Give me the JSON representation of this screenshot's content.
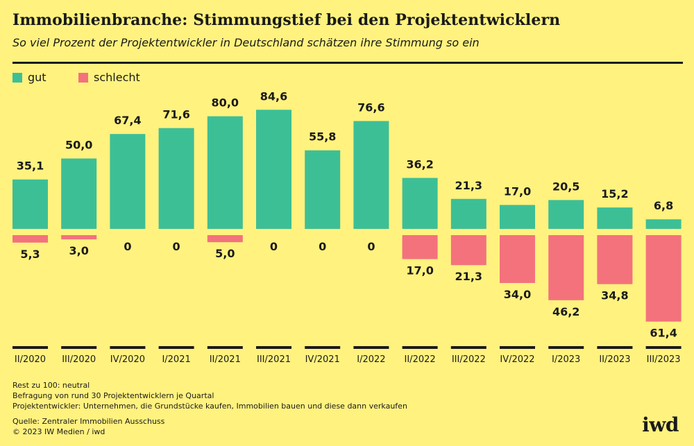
{
  "header": {
    "title": "Immobilienbranche: Stimmungstief bei den Projektentwicklern",
    "subtitle": "So viel Prozent der Projektentwickler in Deutschland schätzen ihre Stimmung so ein"
  },
  "legend": {
    "good_label": "gut",
    "bad_label": "schlecht"
  },
  "colors": {
    "good": "#3dbf96",
    "bad": "#f3727c",
    "background": "#fff27f",
    "text": "#1a1a1a"
  },
  "chart_data": {
    "type": "bar",
    "categories": [
      "II/2020",
      "III/2020",
      "IV/2020",
      "I/2021",
      "II/2021",
      "III/2021",
      "IV/2021",
      "I/2022",
      "II/2022",
      "III/2022",
      "IV/2022",
      "I/2023",
      "II/2023",
      "III/2023"
    ],
    "series": [
      {
        "name": "gut",
        "values": [
          35.1,
          50.0,
          67.4,
          71.6,
          80.0,
          84.6,
          55.8,
          76.6,
          36.2,
          21.3,
          17.0,
          20.5,
          15.2,
          6.8
        ],
        "labels": [
          "35,1",
          "50,0",
          "67,4",
          "71,6",
          "80,0",
          "84,6",
          "55,8",
          "76,6",
          "36,2",
          "21,3",
          "17,0",
          "20,5",
          "15,2",
          "6,8"
        ]
      },
      {
        "name": "schlecht",
        "values": [
          5.3,
          3.0,
          0,
          0,
          5.0,
          0,
          0,
          0,
          17.0,
          21.3,
          34.0,
          46.2,
          34.8,
          61.4
        ],
        "labels": [
          "5,3",
          "3,0",
          "0",
          "0",
          "5,0",
          "0",
          "0",
          "0",
          "17,0",
          "21,3",
          "34,0",
          "46,2",
          "34,8",
          "61,4"
        ]
      }
    ],
    "legend_position": "top-left",
    "grid": false
  },
  "footer": {
    "notes": [
      "Rest zu 100: neutral",
      "Befragung von rund 30 Projektentwicklern je Quartal",
      "Projektentwickler: Unternehmen, die Grundstücke kaufen, Immobilien bauen und diese dann verkaufen"
    ],
    "source": "Quelle: Zentraler Immobilien Ausschuss",
    "copyright": "© 2023 IW Medien / iwd",
    "logo": "iwd"
  }
}
